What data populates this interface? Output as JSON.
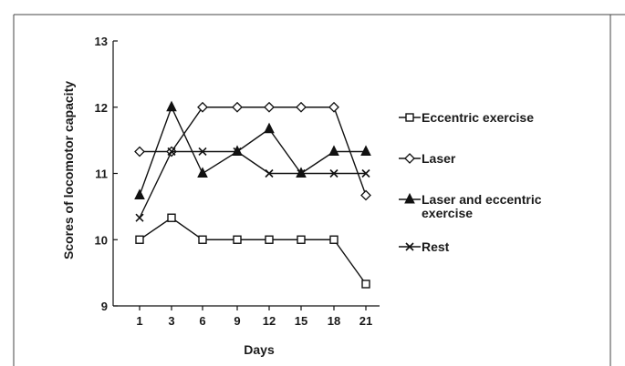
{
  "chart_data": {
    "type": "line",
    "xlabel": "Days",
    "ylabel": "Scores of locomotor capacity",
    "categories": [
      "1",
      "3",
      "6",
      "9",
      "12",
      "15",
      "18",
      "21"
    ],
    "yticks": [
      9,
      10,
      11,
      12,
      13
    ],
    "ylim": [
      9,
      13
    ],
    "grid": false,
    "legend_position": "right",
    "series": [
      {
        "name": "Eccentric exercise",
        "marker": "open-square",
        "values": [
          10,
          10.33,
          10,
          10,
          10,
          10,
          10,
          9.33
        ]
      },
      {
        "name": "Laser",
        "marker": "open-diamond",
        "values": [
          11.33,
          11.33,
          12,
          12,
          12,
          12,
          12,
          10.67
        ]
      },
      {
        "name": "Laser and eccentric exercise",
        "marker": "filled-triangle",
        "values": [
          10.67,
          12,
          11,
          11.33,
          11.67,
          11,
          11.33,
          11.33
        ]
      },
      {
        "name": "Rest",
        "marker": "cross",
        "values": [
          10.33,
          11.33,
          11.33,
          11.33,
          11,
          11,
          11,
          11
        ]
      }
    ],
    "legend_lines": [
      [
        "Eccentric exercise"
      ],
      [
        "Laser"
      ],
      [
        "Laser and eccentric",
        "exercise"
      ],
      [
        "Rest"
      ]
    ]
  }
}
